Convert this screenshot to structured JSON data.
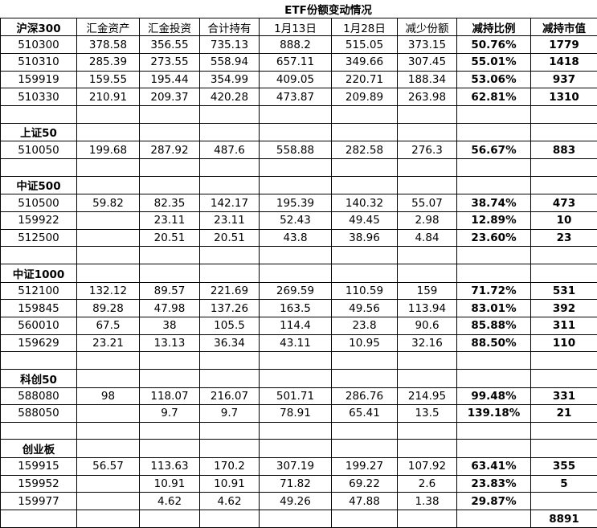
{
  "title": "ETF份额变动情况",
  "colors": {
    "accent_red": "#FF0000",
    "text": "#000000",
    "grid_line": "#000000",
    "background": "#FFFFFF"
  },
  "table": {
    "header": {
      "cells": [
        "沪深300",
        "汇金资产",
        "汇金投资",
        "合计持有",
        "1月13日",
        "1月28日",
        "减少份额",
        "减持比例",
        "减持市值"
      ],
      "red_columns": [
        0,
        7,
        8
      ]
    },
    "rows": [
      {
        "type": "data",
        "cells": [
          "510300",
          "378.58",
          "356.55",
          "735.13",
          "888.2",
          "515.05",
          "373.15",
          "50.76%",
          "1779"
        ]
      },
      {
        "type": "data",
        "cells": [
          "510310",
          "285.39",
          "273.55",
          "558.94",
          "657.11",
          "349.66",
          "307.45",
          "55.01%",
          "1418"
        ]
      },
      {
        "type": "data",
        "cells": [
          "159919",
          "159.55",
          "195.44",
          "354.99",
          "409.05",
          "220.71",
          "188.34",
          "53.06%",
          "937"
        ]
      },
      {
        "type": "data",
        "cells": [
          "510330",
          "210.91",
          "209.37",
          "420.28",
          "473.87",
          "209.89",
          "263.98",
          "62.81%",
          "1310"
        ]
      },
      {
        "type": "spacer"
      },
      {
        "type": "section",
        "label": "上证50"
      },
      {
        "type": "data",
        "cells": [
          "510050",
          "199.68",
          "287.92",
          "487.6",
          "558.88",
          "282.58",
          "276.3",
          "56.67%",
          "883"
        ]
      },
      {
        "type": "spacer"
      },
      {
        "type": "section",
        "label": "中证500"
      },
      {
        "type": "data",
        "cells": [
          "510500",
          "59.82",
          "82.35",
          "142.17",
          "195.39",
          "140.32",
          "55.07",
          "38.74%",
          "473"
        ]
      },
      {
        "type": "data",
        "cells": [
          "159922",
          "",
          "23.11",
          "23.11",
          "52.43",
          "49.45",
          "2.98",
          "12.89%",
          "10"
        ]
      },
      {
        "type": "data",
        "cells": [
          "512500",
          "",
          "20.51",
          "20.51",
          "43.8",
          "38.96",
          "4.84",
          "23.60%",
          "23"
        ]
      },
      {
        "type": "spacer"
      },
      {
        "type": "section",
        "label": "中证1000"
      },
      {
        "type": "data",
        "cells": [
          "512100",
          "132.12",
          "89.57",
          "221.69",
          "269.59",
          "110.59",
          "159",
          "71.72%",
          "531"
        ]
      },
      {
        "type": "data",
        "cells": [
          "159845",
          "89.28",
          "47.98",
          "137.26",
          "163.5",
          "49.56",
          "113.94",
          "83.01%",
          "392"
        ]
      },
      {
        "type": "data",
        "cells": [
          "560010",
          "67.5",
          "38",
          "105.5",
          "114.4",
          "23.8",
          "90.6",
          "85.88%",
          "311"
        ]
      },
      {
        "type": "data",
        "cells": [
          "159629",
          "23.21",
          "13.13",
          "36.34",
          "43.11",
          "10.95",
          "32.16",
          "88.50%",
          "110"
        ]
      },
      {
        "type": "spacer"
      },
      {
        "type": "section",
        "label": "科创50"
      },
      {
        "type": "data",
        "cells": [
          "588080",
          "98",
          "118.07",
          "216.07",
          "501.71",
          "286.76",
          "214.95",
          "99.48%",
          "331"
        ]
      },
      {
        "type": "data",
        "cells": [
          "588050",
          "",
          "9.7",
          "9.7",
          "78.91",
          "65.41",
          "13.5",
          "139.18%",
          "21"
        ]
      },
      {
        "type": "spacer"
      },
      {
        "type": "section",
        "label": "创业板"
      },
      {
        "type": "data",
        "cells": [
          "159915",
          "56.57",
          "113.63",
          "170.2",
          "307.19",
          "199.27",
          "107.92",
          "63.41%",
          "355"
        ]
      },
      {
        "type": "data",
        "cells": [
          "159952",
          "",
          "10.91",
          "10.91",
          "71.82",
          "69.22",
          "2.6",
          "23.83%",
          "5"
        ]
      },
      {
        "type": "data",
        "cells": [
          "159977",
          "",
          "4.62",
          "4.62",
          "49.26",
          "47.88",
          "1.38",
          "29.87%",
          ""
        ]
      },
      {
        "type": "total",
        "cells": [
          "",
          "",
          "",
          "",
          "",
          "",
          "",
          "",
          "8891"
        ]
      }
    ]
  }
}
